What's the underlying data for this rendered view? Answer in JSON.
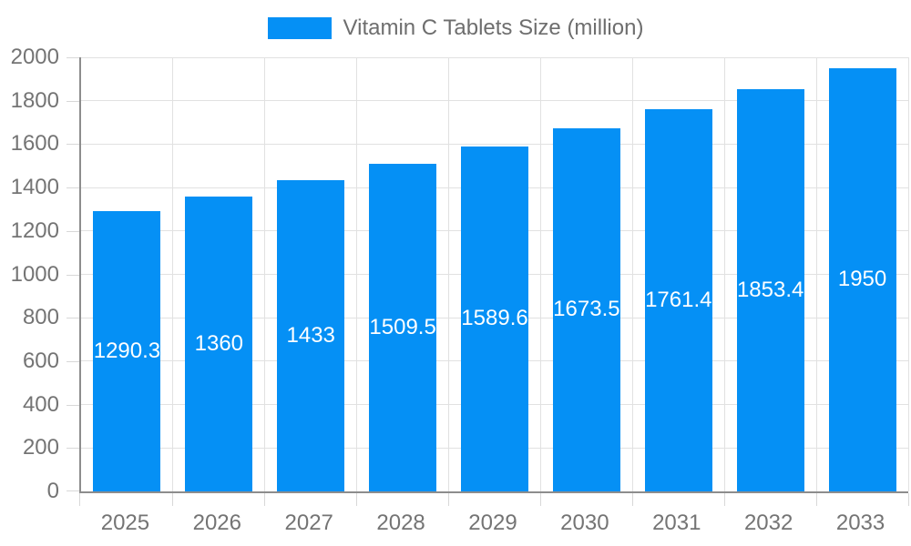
{
  "legend": {
    "label": "Vitamin C Tablets Size (million)"
  },
  "colors": {
    "background": "#ffffff",
    "bar": "#0590f5",
    "axis_line": "#8d8d8d",
    "grid_line": "#e1e1e1",
    "tick_line": "#d8d8d8",
    "axis_label": "#747474",
    "legend_text": "#6e6e6e",
    "value_label": "#ffffff"
  },
  "chart_data": {
    "type": "bar",
    "title": "Vitamin C Tablets Size (million)",
    "series_name": "Vitamin C Tablets Size (million)",
    "categories": [
      "2025",
      "2026",
      "2027",
      "2028",
      "2029",
      "2030",
      "2031",
      "2032",
      "2033"
    ],
    "values": [
      1290.3,
      1360,
      1433,
      1509.5,
      1589.6,
      1673.5,
      1761.4,
      1853.4,
      1950
    ],
    "value_labels": [
      "1290.3",
      "1360",
      "1433",
      "1509.5",
      "1589.6",
      "1673.5",
      "1761.4",
      "1853.4",
      "1950"
    ],
    "xlabel": "",
    "ylabel": "",
    "ylim": [
      0,
      2000
    ],
    "yticks": [
      0,
      200,
      400,
      600,
      800,
      1000,
      1200,
      1400,
      1600,
      1800,
      2000
    ],
    "grid": true,
    "legend_position": "top-center",
    "value_label_position": "inside-center"
  }
}
